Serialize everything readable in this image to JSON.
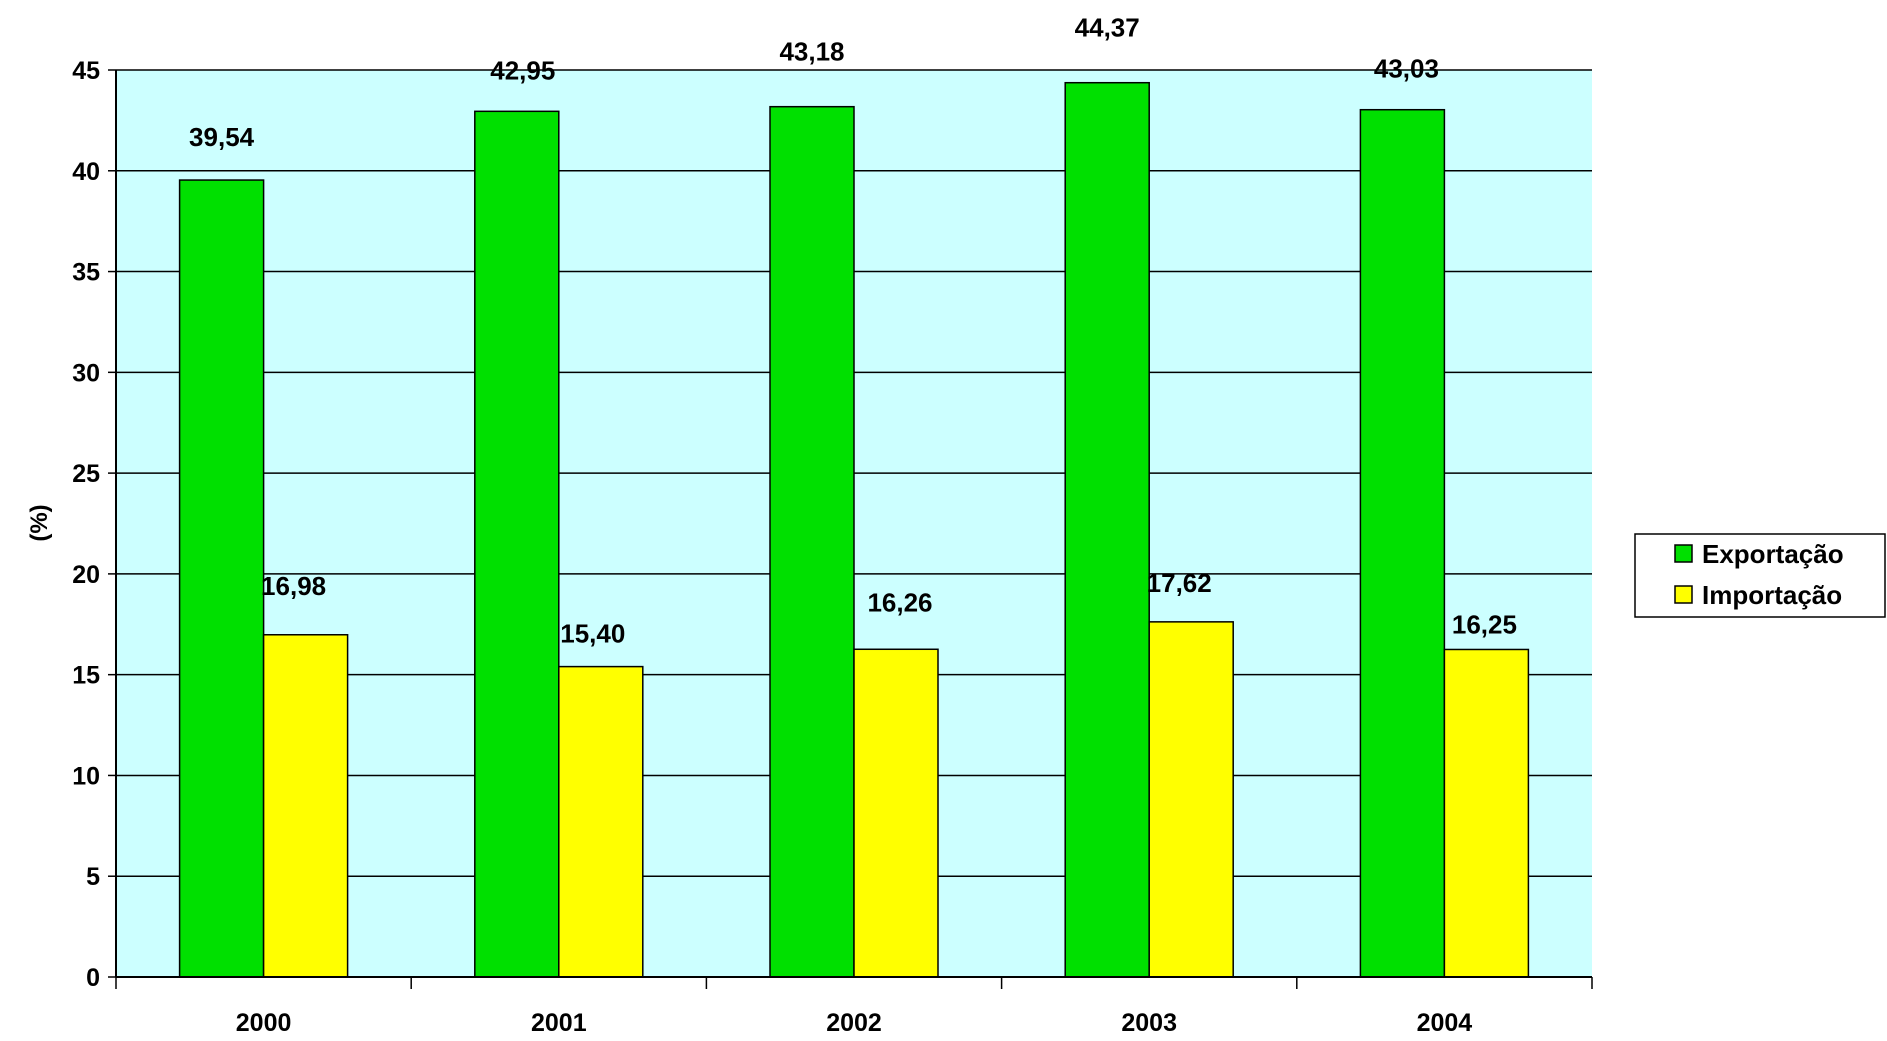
{
  "chart_data": {
    "type": "bar",
    "categories": [
      "2000",
      "2001",
      "2002",
      "2003",
      "2004"
    ],
    "series": [
      {
        "name": "Exportação",
        "values": [
          39.54,
          42.95,
          43.18,
          44.37,
          43.03
        ],
        "labels": [
          "39,54",
          "42,95",
          "43,18",
          "44,37",
          "43,03"
        ],
        "color": "#00e000"
      },
      {
        "name": "Importação",
        "values": [
          16.98,
          15.4,
          16.26,
          17.62,
          16.25
        ],
        "labels": [
          "16,98",
          "15,40",
          "16,26",
          "17,62",
          "16,25"
        ],
        "color": "#ffff00"
      }
    ],
    "title": "",
    "xlabel": "",
    "ylabel": "(%)",
    "ylim": [
      0,
      45
    ],
    "yticks": [
      "0",
      "5",
      "10",
      "15",
      "20",
      "25",
      "30",
      "35",
      "40",
      "45"
    ],
    "grid": true,
    "legend_position": "right",
    "plot_background": "#ccffff"
  }
}
